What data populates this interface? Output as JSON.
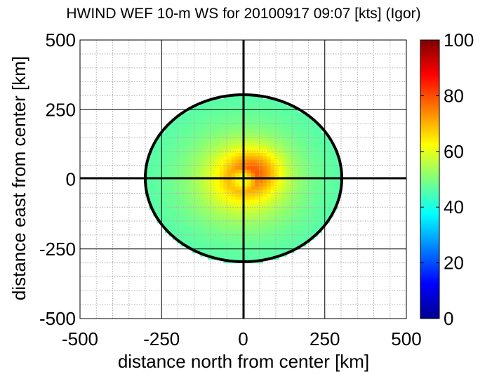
{
  "chart_data": {
    "type": "heatmap",
    "title": "HWIND WEF 10-m WS for 20100917 09:07 [kts] (Igor)",
    "xlabel": "distance north from center [km]",
    "ylabel": "distance east from center [km]",
    "xlim": [
      -500,
      500
    ],
    "ylim": [
      -500,
      500
    ],
    "x_ticks": [
      "-500",
      "-250",
      "0",
      "250",
      "500"
    ],
    "y_ticks": [
      "-500",
      "-250",
      "0",
      "250",
      "500"
    ],
    "x_tick_values": [
      -500,
      -250,
      0,
      250,
      500
    ],
    "y_tick_values": [
      -500,
      -250,
      0,
      250,
      500
    ],
    "grid": "major solid, minor dotted",
    "colorbar": {
      "range": [
        0,
        100
      ],
      "ticks": [
        "0",
        "20",
        "40",
        "60",
        "80",
        "100"
      ],
      "tick_values": [
        0,
        20,
        40,
        60,
        80,
        100
      ],
      "colormap": "jet"
    },
    "field": {
      "domain_radius_km": 300,
      "max_wind_kts": 78,
      "max_wind_location_km": [
        40,
        35
      ],
      "radius_of_max_wind_km": 45,
      "center_wind_kts": 57,
      "outer_wind_kts": 45
    }
  }
}
